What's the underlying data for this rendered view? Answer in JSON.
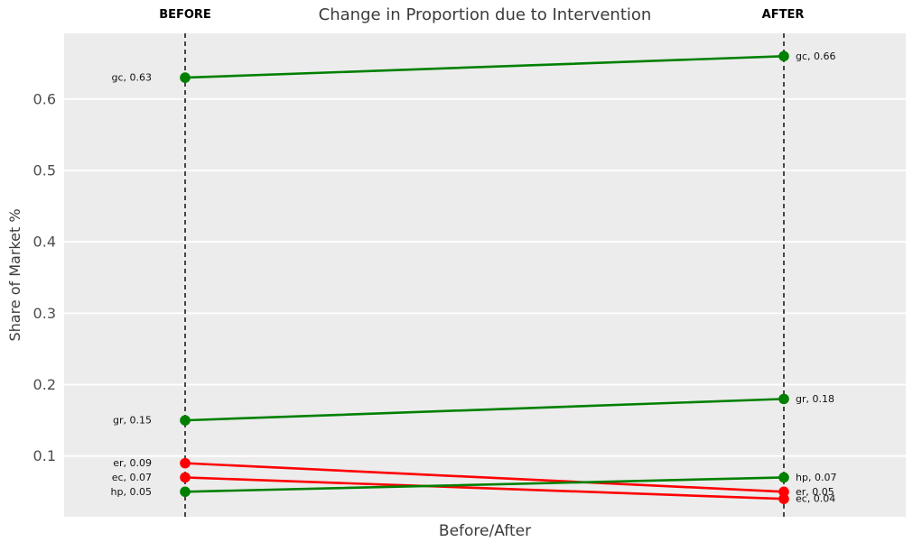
{
  "chart_data": {
    "type": "line",
    "variant": "slopegraph",
    "title": "Change in Proportion due to Intervention",
    "xlabel": "Before/After",
    "ylabel": "Share of Market %",
    "columns": [
      {
        "id": "before",
        "label": "BEFORE"
      },
      {
        "id": "after",
        "label": "AFTER"
      }
    ],
    "yticks": [
      {
        "value": 0.1,
        "label": "0.1"
      },
      {
        "value": 0.2,
        "label": "0.2"
      },
      {
        "value": 0.3,
        "label": "0.3"
      },
      {
        "value": 0.4,
        "label": "0.4"
      },
      {
        "value": 0.5,
        "label": "0.5"
      },
      {
        "value": 0.6,
        "label": "0.6"
      }
    ],
    "ylim": [
      0.015,
      0.692
    ],
    "grid": {
      "horizontal": true,
      "vertical": false
    },
    "legend": "none",
    "colors": {
      "increase_green": "#008000",
      "decrease_red": "#ff0000",
      "plot_background": "#ececec",
      "grid_line": "#ffffff",
      "guide_line": "#000000",
      "title_text": "#3b3b3b",
      "tick_text": "#4d4d4d"
    },
    "series": [
      {
        "name": "gc",
        "values": [
          0.63,
          0.66
        ],
        "trend": "increase",
        "color": "#008000",
        "point_labels": [
          "gc, 0.63",
          "gc, 0.66"
        ]
      },
      {
        "name": "gr",
        "values": [
          0.15,
          0.18
        ],
        "trend": "increase",
        "color": "#008000",
        "point_labels": [
          "gr, 0.15",
          "gr, 0.18"
        ]
      },
      {
        "name": "er",
        "values": [
          0.09,
          0.05
        ],
        "trend": "decrease",
        "color": "#ff0000",
        "point_labels": [
          "er, 0.09",
          "er, 0.05"
        ]
      },
      {
        "name": "ec",
        "values": [
          0.07,
          0.04
        ],
        "trend": "decrease",
        "color": "#ff0000",
        "point_labels": [
          "ec, 0.07",
          "ec, 0.04"
        ]
      },
      {
        "name": "hp",
        "values": [
          0.05,
          0.07
        ],
        "trend": "increase",
        "color": "#008000",
        "point_labels": [
          "hp, 0.05",
          "hp, 0.07"
        ]
      }
    ]
  }
}
